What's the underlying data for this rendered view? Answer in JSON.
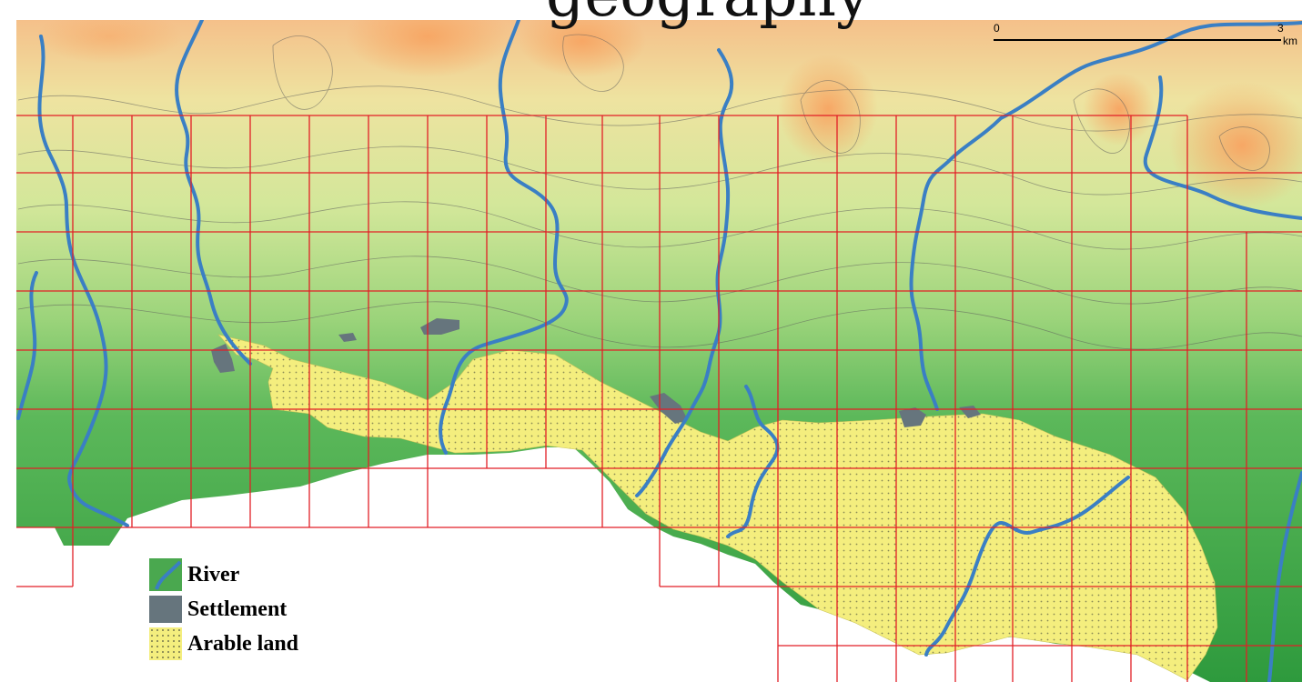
{
  "title_fragment": "geography",
  "scale_bar": {
    "start": "0",
    "end": "3",
    "unit": "km"
  },
  "legend": [
    {
      "key": "river",
      "label": "River",
      "icon": "river-swatch-icon",
      "color": "#3a7fc4"
    },
    {
      "key": "settlement",
      "label": "Settlement",
      "icon": "settlement-swatch-icon",
      "color": "#66757d"
    },
    {
      "key": "arable",
      "label": "Arable land",
      "icon": "arable-swatch-icon",
      "color": "#f4ee7e"
    }
  ],
  "colors": {
    "lowland_green": "#3f9f45",
    "highland_orange": "#f5b77e",
    "grid_lines": "#e21f26",
    "river": "#3a7fc4",
    "settlement": "#66757d",
    "arable": "#f4ee7e",
    "contours": "#5a5a5a"
  }
}
